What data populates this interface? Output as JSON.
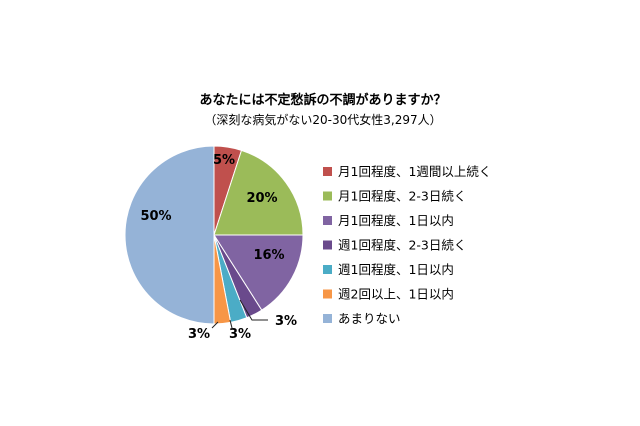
{
  "chart_data": {
    "type": "pie",
    "title": "あなたには不定愁訴の不調がありますか？",
    "subtitle": "（深刻な病気がない20-30代女性3,297人）",
    "legend_position": "right",
    "slices": [
      {
        "label": "月1回程度、1週間以上続く",
        "value": 5,
        "display": "5%",
        "color": "#c0504d"
      },
      {
        "label": "月1回程度、2-3日続く",
        "value": 20,
        "display": "20%",
        "color": "#9bbb59"
      },
      {
        "label": "月1回程度、1日以内",
        "value": 16,
        "display": "16%",
        "color": "#8064a2"
      },
      {
        "label": "週1回程度、2-3日続く",
        "value": 3,
        "display": "3%",
        "color": "#6a4a8c"
      },
      {
        "label": "週1回程度、1日以内",
        "value": 3,
        "display": "3%",
        "color": "#4bacc6"
      },
      {
        "label": "週2回以上、1日以内",
        "value": 3,
        "display": "3%",
        "color": "#f79646"
      },
      {
        "label": "あまりない",
        "value": 50,
        "display": "50%",
        "color": "#95b3d7"
      }
    ]
  }
}
